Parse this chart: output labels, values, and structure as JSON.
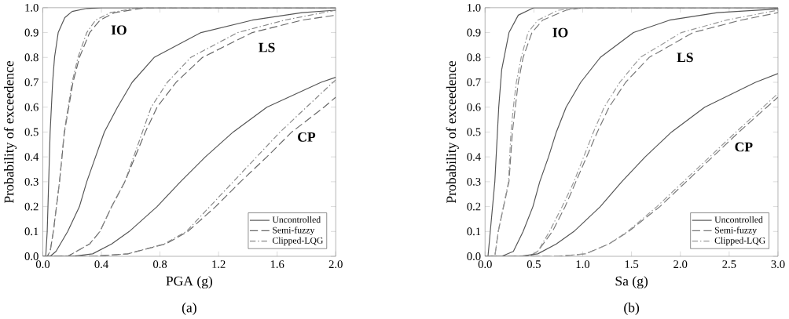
{
  "chart_data": [
    {
      "type": "line",
      "xlabel": "PGA (g)",
      "ylabel": "Probability of exceedence",
      "legend": "bottom right",
      "xlim": [
        0,
        2
      ],
      "ylim": [
        0,
        1
      ],
      "xticks": [
        {
          "value": 0,
          "label": "0.0"
        },
        {
          "value": 0.4,
          "label": "0.4"
        },
        {
          "value": 0.8,
          "label": "0.8"
        },
        {
          "value": 1.2,
          "label": "1.2"
        },
        {
          "value": 1.6,
          "label": "1.6"
        },
        {
          "value": 2,
          "label": "2.0"
        }
      ],
      "yticks": [
        {
          "value": 0,
          "label": "0.0"
        },
        {
          "value": 0.1,
          "label": "0.1"
        },
        {
          "value": 0.2,
          "label": "0.2"
        },
        {
          "value": 0.3,
          "label": "0.3"
        },
        {
          "value": 0.4,
          "label": "0.4"
        },
        {
          "value": 0.5,
          "label": "0.5"
        },
        {
          "value": 0.6,
          "label": "0.6"
        },
        {
          "value": 0.7,
          "label": "0.7"
        },
        {
          "value": 0.8,
          "label": "0.8"
        },
        {
          "value": 0.9,
          "label": "0.9"
        },
        {
          "value": 1,
          "label": "1.0"
        }
      ],
      "annotations": [
        "IO",
        "LS",
        "CP",
        "(a)"
      ],
      "series": [
        {
          "name": "Uncontrolled",
          "color": "#555555",
          "line_style": "solid",
          "x": [
            0,
            0.02,
            0.03,
            0.04,
            0.05,
            0.067,
            0.08,
            0.105,
            0.15,
            0.2,
            0.3,
            0.4,
            2
          ],
          "values": [
            0,
            0,
            0.1,
            0.3,
            0.5,
            0.7,
            0.8,
            0.9,
            0.96,
            0.985,
            0.997,
            1,
            1
          ]
        },
        {
          "name": "Semi-fuzzy",
          "color": "#666666",
          "line_style": "dashed",
          "x": [
            0,
            0.03,
            0.05,
            0.072,
            0.114,
            0.148,
            0.206,
            0.25,
            0.32,
            0.39,
            0.49,
            0.7,
            2
          ],
          "values": [
            0,
            0,
            0.02,
            0.1,
            0.3,
            0.5,
            0.7,
            0.8,
            0.9,
            0.95,
            0.98,
            1,
            1
          ]
        },
        {
          "name": "Clipped-LQG",
          "color": "#888888",
          "line_style": "dashdotted",
          "x": [
            0,
            0.03,
            0.05,
            0.072,
            0.114,
            0.146,
            0.2,
            0.24,
            0.3,
            0.36,
            0.46,
            0.65,
            2
          ],
          "values": [
            0,
            0,
            0.02,
            0.1,
            0.3,
            0.5,
            0.7,
            0.8,
            0.9,
            0.95,
            0.98,
            1,
            1
          ]
        },
        {
          "color": "#555555",
          "line_style": "solid",
          "x": [
            0,
            0.05,
            0.09,
            0.17,
            0.25,
            0.3,
            0.36,
            0.42,
            0.51,
            0.61,
            0.76,
            1.08,
            1.43,
            1.77,
            2
          ],
          "values": [
            0,
            0,
            0.02,
            0.1,
            0.2,
            0.3,
            0.4,
            0.5,
            0.6,
            0.7,
            0.8,
            0.9,
            0.95,
            0.98,
            0.99
          ]
        },
        {
          "color": "#666666",
          "line_style": "dashed",
          "x": [
            0,
            0.17,
            0.32,
            0.39,
            0.47,
            0.56,
            0.63,
            0.7,
            0.78,
            0.91,
            1.09,
            1.43,
            1.77,
            2
          ],
          "values": [
            0,
            0,
            0.05,
            0.1,
            0.2,
            0.3,
            0.4,
            0.5,
            0.6,
            0.7,
            0.8,
            0.9,
            0.95,
            0.97
          ]
        },
        {
          "color": "#888888",
          "line_style": "dashdotted",
          "x": [
            0,
            0.17,
            0.32,
            0.39,
            0.47,
            0.56,
            0.62,
            0.68,
            0.74,
            0.85,
            1.01,
            1.33,
            1.65,
            2
          ],
          "values": [
            0,
            0,
            0.05,
            0.1,
            0.2,
            0.3,
            0.4,
            0.5,
            0.6,
            0.7,
            0.8,
            0.9,
            0.95,
            0.99
          ]
        },
        {
          "color": "#555555",
          "line_style": "solid",
          "x": [
            0,
            0.2,
            0.34,
            0.47,
            0.59,
            0.78,
            0.94,
            1.11,
            1.3,
            1.53,
            1.9,
            2
          ],
          "values": [
            0,
            0,
            0.01,
            0.05,
            0.1,
            0.2,
            0.3,
            0.4,
            0.5,
            0.6,
            0.7,
            0.72
          ]
        },
        {
          "color": "#666666",
          "line_style": "dashed",
          "x": [
            0,
            0.35,
            0.58,
            0.84,
            0.99,
            1.18,
            1.35,
            1.53,
            1.7,
            1.92,
            2
          ],
          "values": [
            0,
            0,
            0.01,
            0.05,
            0.1,
            0.2,
            0.3,
            0.4,
            0.5,
            0.6,
            0.64
          ]
        },
        {
          "color": "#888888",
          "line_style": "dashdotted",
          "x": [
            0,
            0.35,
            0.58,
            0.83,
            0.98,
            1.14,
            1.3,
            1.46,
            1.62,
            1.8,
            2
          ],
          "values": [
            0,
            0,
            0.01,
            0.05,
            0.1,
            0.2,
            0.3,
            0.4,
            0.5,
            0.6,
            0.71
          ]
        }
      ]
    },
    {
      "type": "line",
      "xlabel": "Sa (g)",
      "ylabel": "Probability of exceedence",
      "legend": "bottom right",
      "xlim": [
        0,
        3
      ],
      "ylim": [
        0,
        1
      ],
      "xticks": [
        {
          "value": 0,
          "label": "0.0"
        },
        {
          "value": 0.5,
          "label": "0.5"
        },
        {
          "value": 1,
          "label": "1.0"
        },
        {
          "value": 1.5,
          "label": "1.5"
        },
        {
          "value": 2,
          "label": "2.0"
        },
        {
          "value": 2.5,
          "label": "2.5"
        },
        {
          "value": 3,
          "label": "3.0"
        }
      ],
      "yticks": [
        {
          "value": 0,
          "label": "0.0"
        },
        {
          "value": 0.1,
          "label": "0.1"
        },
        {
          "value": 0.2,
          "label": "0.2"
        },
        {
          "value": 0.3,
          "label": "0.3"
        },
        {
          "value": 0.4,
          "label": "0.4"
        },
        {
          "value": 0.5,
          "label": "0.5"
        },
        {
          "value": 0.6,
          "label": "0.6"
        },
        {
          "value": 0.7,
          "label": "0.7"
        },
        {
          "value": 0.8,
          "label": "0.8"
        },
        {
          "value": 0.9,
          "label": "0.9"
        },
        {
          "value": 1,
          "label": "1.0"
        }
      ],
      "annotations": [
        "IO",
        "LS",
        "CP",
        "(b)"
      ],
      "series": [
        {
          "name": "Uncontrolled",
          "color": "#555555",
          "line_style": "solid",
          "x": [
            0,
            0.03,
            0.1,
            0.14,
            0.17,
            0.245,
            0.34,
            0.5,
            3
          ],
          "values": [
            0,
            0,
            0.3,
            0.6,
            0.75,
            0.9,
            0.97,
            1,
            1
          ]
        },
        {
          "name": "Semi-fuzzy",
          "color": "#777777",
          "line_style": "dashed",
          "x": [
            0,
            0.1,
            0.135,
            0.245,
            0.28,
            0.31,
            0.34,
            0.39,
            0.48,
            0.59,
            0.83,
            1,
            3
          ],
          "values": [
            0,
            0,
            0.1,
            0.3,
            0.5,
            0.6,
            0.7,
            0.8,
            0.9,
            0.95,
            0.99,
            1,
            1
          ]
        },
        {
          "name": "Clipped-LQG",
          "color": "#999999",
          "line_style": "dashdotted",
          "x": [
            0,
            0.1,
            0.135,
            0.24,
            0.265,
            0.29,
            0.32,
            0.37,
            0.44,
            0.54,
            0.75,
            1,
            3
          ],
          "values": [
            0,
            0,
            0.1,
            0.3,
            0.5,
            0.6,
            0.7,
            0.8,
            0.9,
            0.95,
            0.99,
            1,
            1
          ]
        },
        {
          "color": "#555555",
          "line_style": "solid",
          "x": [
            0,
            0.17,
            0.29,
            0.39,
            0.49,
            0.56,
            0.65,
            0.73,
            0.83,
            0.98,
            1.18,
            1.52,
            1.89,
            2.38,
            3
          ],
          "values": [
            0,
            0,
            0.02,
            0.1,
            0.2,
            0.3,
            0.4,
            0.5,
            0.6,
            0.7,
            0.8,
            0.9,
            0.95,
            0.98,
            0.995
          ]
        },
        {
          "color": "#777777",
          "line_style": "dashed",
          "x": [
            0,
            0.45,
            0.54,
            0.69,
            0.82,
            0.93,
            1.04,
            1.15,
            1.27,
            1.44,
            1.68,
            2.13,
            2.62,
            3
          ],
          "values": [
            0,
            0,
            0.02,
            0.1,
            0.2,
            0.3,
            0.4,
            0.5,
            0.6,
            0.7,
            0.8,
            0.9,
            0.95,
            0.98
          ]
        },
        {
          "color": "#999999",
          "line_style": "dashdotted",
          "x": [
            0,
            0.45,
            0.54,
            0.66,
            0.79,
            0.91,
            1.01,
            1.11,
            1.22,
            1.38,
            1.59,
            2.01,
            2.47,
            3
          ],
          "values": [
            0,
            0,
            0.02,
            0.1,
            0.2,
            0.3,
            0.4,
            0.5,
            0.6,
            0.7,
            0.8,
            0.9,
            0.95,
            0.99
          ]
        },
        {
          "color": "#555555",
          "line_style": "solid",
          "x": [
            0,
            0.35,
            0.54,
            0.73,
            0.91,
            1.18,
            1.4,
            1.64,
            1.91,
            2.25,
            2.77,
            3
          ],
          "values": [
            0,
            0,
            0.01,
            0.05,
            0.1,
            0.2,
            0.3,
            0.4,
            0.5,
            0.6,
            0.7,
            0.735
          ]
        },
        {
          "color": "#777777",
          "line_style": "dashed",
          "x": [
            0,
            0.75,
            1.03,
            1.27,
            1.47,
            1.79,
            2.06,
            2.33,
            2.6,
            3
          ],
          "values": [
            0,
            0,
            0.01,
            0.05,
            0.1,
            0.2,
            0.3,
            0.4,
            0.5,
            0.64
          ]
        },
        {
          "color": "#999999",
          "line_style": "dashdotted",
          "x": [
            0,
            0.75,
            1.03,
            1.27,
            1.46,
            1.76,
            2.03,
            2.3,
            2.57,
            3
          ],
          "values": [
            0,
            0,
            0.01,
            0.05,
            0.1,
            0.2,
            0.3,
            0.4,
            0.5,
            0.655
          ]
        }
      ]
    }
  ]
}
